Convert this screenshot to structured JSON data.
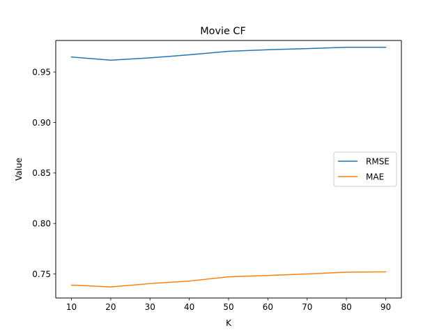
{
  "chart_data": {
    "type": "line",
    "title": "Movie CF",
    "xlabel": "K",
    "ylabel": "Value",
    "x": [
      10,
      20,
      30,
      40,
      50,
      60,
      70,
      80,
      90
    ],
    "xticks": [
      "10",
      "20",
      "30",
      "40",
      "50",
      "60",
      "70",
      "80",
      "90"
    ],
    "yticks": [
      "0.75",
      "0.80",
      "0.85",
      "0.90",
      "0.95"
    ],
    "xlim": [
      6,
      94
    ],
    "ylim": [
      0.7262,
      0.9812
    ],
    "grid": false,
    "legend_position": "center-right",
    "series": [
      {
        "name": "RMSE",
        "color": "#1f77b4",
        "values": [
          0.9648,
          0.9617,
          0.964,
          0.967,
          0.9705,
          0.972,
          0.9732,
          0.9745,
          0.9745
        ]
      },
      {
        "name": "MAE",
        "color": "#ff7f0e",
        "values": [
          0.739,
          0.7372,
          0.7405,
          0.743,
          0.7472,
          0.7485,
          0.75,
          0.7518,
          0.7521
        ]
      }
    ]
  }
}
